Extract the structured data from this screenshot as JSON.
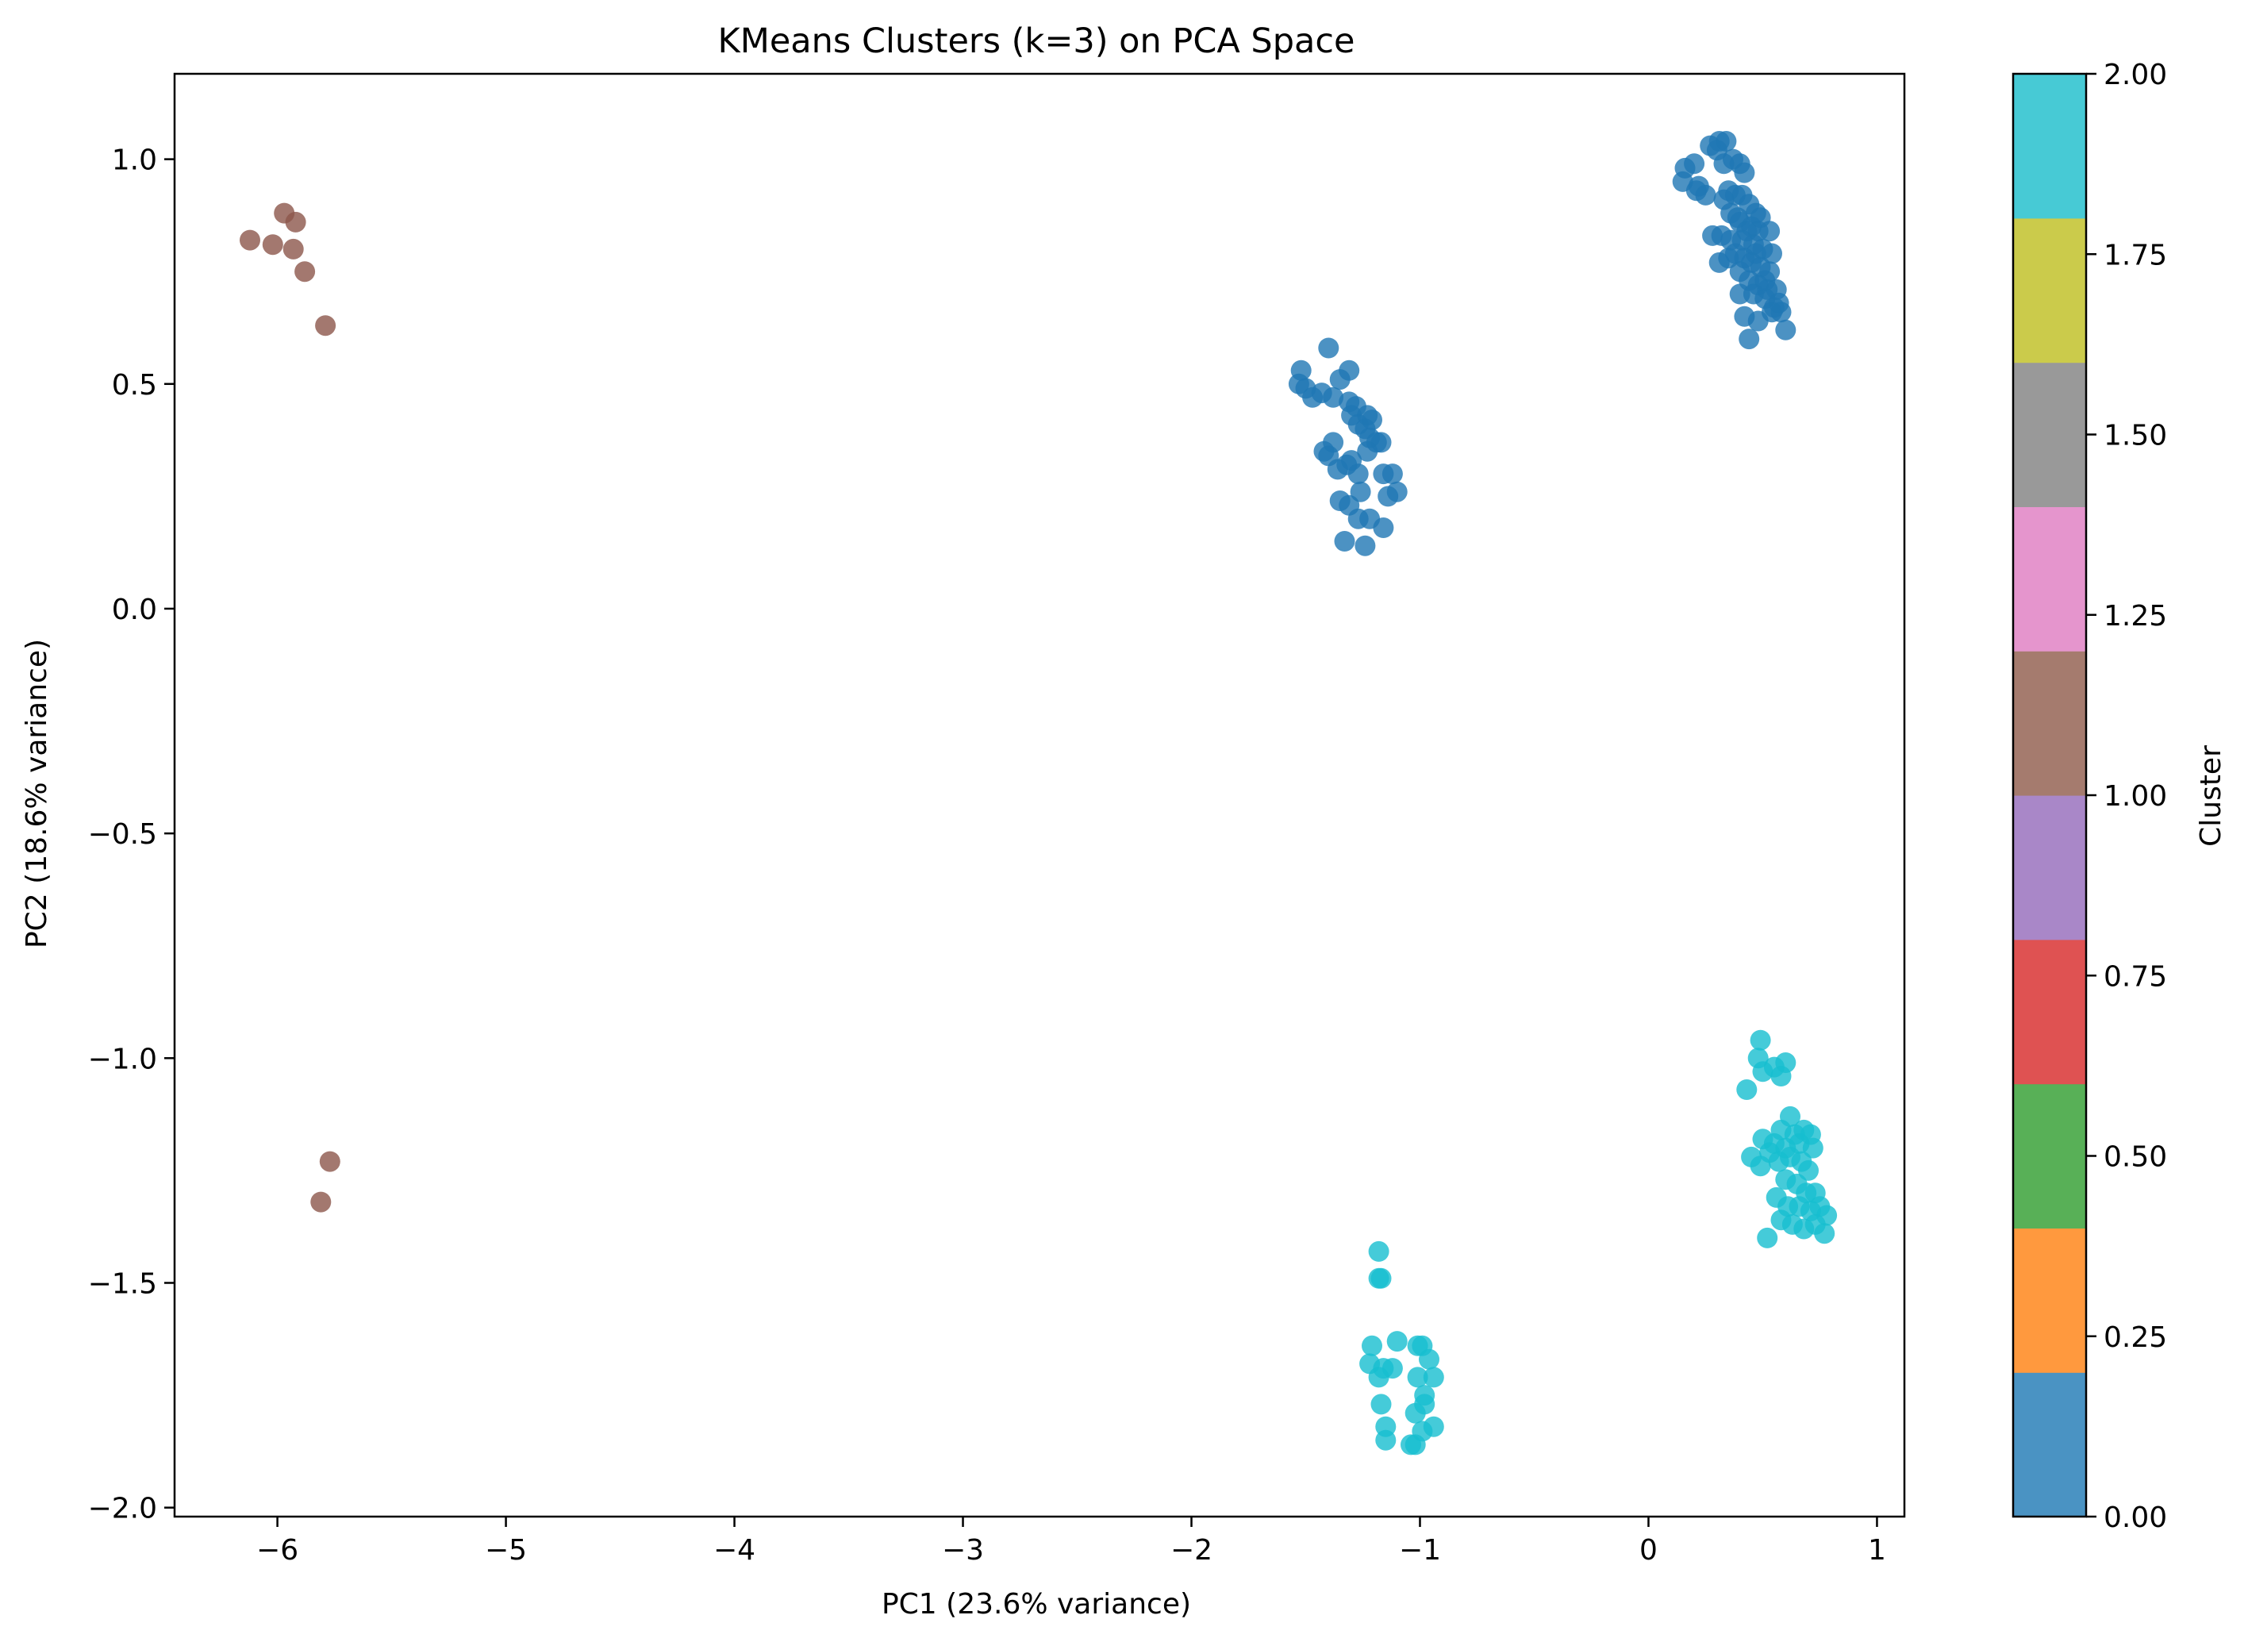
{
  "chart_data": {
    "type": "scatter",
    "title": "KMeans Clusters (k=3) on PCA Space",
    "xlabel": "PC1 (23.6% variance)",
    "ylabel": "PC2 (18.6% variance)",
    "xlim": [
      -6.45,
      1.12
    ],
    "ylim": [
      -2.02,
      1.19
    ],
    "xticks": [
      -6,
      -5,
      -4,
      -3,
      -2,
      -1,
      0,
      1
    ],
    "xtick_labels": [
      "−6",
      "−5",
      "−4",
      "−3",
      "−2",
      "−1",
      "0",
      "1"
    ],
    "yticks": [
      1.0,
      0.5,
      0.0,
      -0.5,
      -1.0,
      -1.5,
      -2.0
    ],
    "ytick_labels": [
      "1.0",
      "0.5",
      "0.0",
      "−0.5",
      "−1.0",
      "−1.5",
      "−2.0"
    ],
    "grid": false,
    "colorbar": {
      "label": "Cluster",
      "range": [
        0,
        2
      ],
      "ticks": [
        0,
        0.25,
        0.5,
        0.75,
        1.0,
        1.25,
        1.5,
        1.75,
        2.0
      ],
      "tick_labels": [
        "0.00",
        "0.25",
        "0.50",
        "0.75",
        "1.00",
        "1.25",
        "1.50",
        "1.75",
        "2.00"
      ],
      "colors": [
        "#4a93c3",
        "#ff993e",
        "#58b057",
        "#df5252",
        "#a987c8",
        "#a57b6e",
        "#e595cd",
        "#999999",
        "#cbcb4b",
        "#47cad5"
      ]
    },
    "series": [
      {
        "cluster": 0,
        "color": "#1f77b4",
        "points": [
          [
            -1.52,
            0.53
          ],
          [
            -1.53,
            0.5
          ],
          [
            -1.5,
            0.49
          ],
          [
            -1.47,
            0.47
          ],
          [
            -1.43,
            0.48
          ],
          [
            -1.4,
            0.58
          ],
          [
            -1.38,
            0.47
          ],
          [
            -1.35,
            0.51
          ],
          [
            -1.31,
            0.53
          ],
          [
            -1.31,
            0.46
          ],
          [
            -1.28,
            0.45
          ],
          [
            -1.3,
            0.43
          ],
          [
            -1.27,
            0.41
          ],
          [
            -1.23,
            0.43
          ],
          [
            -1.24,
            0.4
          ],
          [
            -1.21,
            0.42
          ],
          [
            -1.22,
            0.38
          ],
          [
            -1.19,
            0.37
          ],
          [
            -1.17,
            0.37
          ],
          [
            -1.42,
            0.35
          ],
          [
            -1.4,
            0.34
          ],
          [
            -1.38,
            0.37
          ],
          [
            -1.36,
            0.31
          ],
          [
            -1.32,
            0.32
          ],
          [
            -1.3,
            0.33
          ],
          [
            -1.27,
            0.3
          ],
          [
            -1.23,
            0.35
          ],
          [
            -1.16,
            0.3
          ],
          [
            -1.12,
            0.3
          ],
          [
            -1.14,
            0.25
          ],
          [
            -1.1,
            0.26
          ],
          [
            -1.35,
            0.24
          ],
          [
            -1.31,
            0.23
          ],
          [
            -1.26,
            0.26
          ],
          [
            -1.27,
            0.2
          ],
          [
            -1.22,
            0.2
          ],
          [
            -1.16,
            0.18
          ],
          [
            -1.33,
            0.15
          ],
          [
            -1.24,
            0.14
          ],
          [
            0.16,
            0.98
          ],
          [
            0.2,
            0.99
          ],
          [
            0.15,
            0.95
          ],
          [
            0.21,
            0.93
          ],
          [
            0.25,
            0.92
          ],
          [
            0.22,
            0.94
          ],
          [
            0.27,
            1.03
          ],
          [
            0.31,
            1.04
          ],
          [
            0.34,
            1.04
          ],
          [
            0.3,
            1.02
          ],
          [
            0.33,
            0.99
          ],
          [
            0.37,
            1.0
          ],
          [
            0.4,
            0.99
          ],
          [
            0.42,
            0.97
          ],
          [
            0.35,
            0.93
          ],
          [
            0.33,
            0.91
          ],
          [
            0.38,
            0.92
          ],
          [
            0.41,
            0.92
          ],
          [
            0.44,
            0.9
          ],
          [
            0.47,
            0.88
          ],
          [
            0.49,
            0.87
          ],
          [
            0.36,
            0.88
          ],
          [
            0.4,
            0.86
          ],
          [
            0.45,
            0.85
          ],
          [
            0.48,
            0.84
          ],
          [
            0.53,
            0.84
          ],
          [
            0.28,
            0.83
          ],
          [
            0.32,
            0.83
          ],
          [
            0.36,
            0.82
          ],
          [
            0.41,
            0.82
          ],
          [
            0.46,
            0.81
          ],
          [
            0.5,
            0.8
          ],
          [
            0.54,
            0.79
          ],
          [
            0.38,
            0.79
          ],
          [
            0.42,
            0.78
          ],
          [
            0.45,
            0.77
          ],
          [
            0.49,
            0.76
          ],
          [
            0.53,
            0.75
          ],
          [
            0.31,
            0.77
          ],
          [
            0.35,
            0.78
          ],
          [
            0.4,
            0.75
          ],
          [
            0.44,
            0.73
          ],
          [
            0.48,
            0.72
          ],
          [
            0.52,
            0.71
          ],
          [
            0.56,
            0.71
          ],
          [
            0.46,
            0.7
          ],
          [
            0.51,
            0.69
          ],
          [
            0.55,
            0.67
          ],
          [
            0.58,
            0.66
          ],
          [
            0.4,
            0.7
          ],
          [
            0.42,
            0.65
          ],
          [
            0.48,
            0.64
          ],
          [
            0.54,
            0.66
          ],
          [
            0.6,
            0.62
          ],
          [
            0.44,
            0.6
          ],
          [
            0.57,
            0.68
          ],
          [
            0.51,
            0.73
          ],
          [
            0.47,
            0.79
          ],
          [
            0.43,
            0.84
          ],
          [
            0.39,
            0.87
          ]
        ]
      },
      {
        "cluster": 1,
        "color": "#8c564b",
        "points": [
          [
            -6.12,
            0.82
          ],
          [
            -6.02,
            0.81
          ],
          [
            -5.97,
            0.88
          ],
          [
            -5.92,
            0.86
          ],
          [
            -5.93,
            0.8
          ],
          [
            -5.88,
            0.75
          ],
          [
            -5.79,
            0.63
          ],
          [
            -5.77,
            -1.23
          ],
          [
            -5.81,
            -1.32
          ]
        ]
      },
      {
        "cluster": 2,
        "color": "#17becf",
        "points": [
          [
            0.49,
            -0.96
          ],
          [
            0.48,
            -1.0
          ],
          [
            0.5,
            -1.03
          ],
          [
            0.55,
            -1.02
          ],
          [
            0.58,
            -1.04
          ],
          [
            0.6,
            -1.01
          ],
          [
            0.43,
            -1.07
          ],
          [
            0.62,
            -1.13
          ],
          [
            0.58,
            -1.16
          ],
          [
            0.64,
            -1.17
          ],
          [
            0.68,
            -1.16
          ],
          [
            0.71,
            -1.17
          ],
          [
            0.55,
            -1.19
          ],
          [
            0.6,
            -1.2
          ],
          [
            0.66,
            -1.19
          ],
          [
            0.72,
            -1.2
          ],
          [
            0.5,
            -1.18
          ],
          [
            0.53,
            -1.21
          ],
          [
            0.45,
            -1.22
          ],
          [
            0.49,
            -1.24
          ],
          [
            0.57,
            -1.23
          ],
          [
            0.62,
            -1.22
          ],
          [
            0.67,
            -1.23
          ],
          [
            0.7,
            -1.25
          ],
          [
            0.6,
            -1.27
          ],
          [
            0.65,
            -1.28
          ],
          [
            0.69,
            -1.3
          ],
          [
            0.73,
            -1.3
          ],
          [
            0.56,
            -1.31
          ],
          [
            0.61,
            -1.33
          ],
          [
            0.66,
            -1.33
          ],
          [
            0.71,
            -1.34
          ],
          [
            0.75,
            -1.33
          ],
          [
            0.78,
            -1.35
          ],
          [
            0.58,
            -1.36
          ],
          [
            0.63,
            -1.37
          ],
          [
            0.68,
            -1.38
          ],
          [
            0.73,
            -1.37
          ],
          [
            0.77,
            -1.39
          ],
          [
            0.52,
            -1.4
          ],
          [
            -1.18,
            -1.43
          ],
          [
            -1.18,
            -1.49
          ],
          [
            -1.17,
            -1.49
          ],
          [
            -1.21,
            -1.64
          ],
          [
            -1.1,
            -1.63
          ],
          [
            -1.01,
            -1.64
          ],
          [
            -0.99,
            -1.64
          ],
          [
            -1.22,
            -1.68
          ],
          [
            -1.16,
            -1.69
          ],
          [
            -1.12,
            -1.69
          ],
          [
            -1.18,
            -1.71
          ],
          [
            -0.96,
            -1.67
          ],
          [
            -1.01,
            -1.71
          ],
          [
            -0.94,
            -1.71
          ],
          [
            -0.98,
            -1.75
          ],
          [
            -0.98,
            -1.77
          ],
          [
            -1.17,
            -1.77
          ],
          [
            -1.02,
            -1.79
          ],
          [
            -1.15,
            -1.82
          ],
          [
            -0.99,
            -1.83
          ],
          [
            -0.94,
            -1.82
          ],
          [
            -1.15,
            -1.85
          ],
          [
            -1.04,
            -1.86
          ],
          [
            -1.02,
            -1.86
          ]
        ]
      }
    ]
  }
}
